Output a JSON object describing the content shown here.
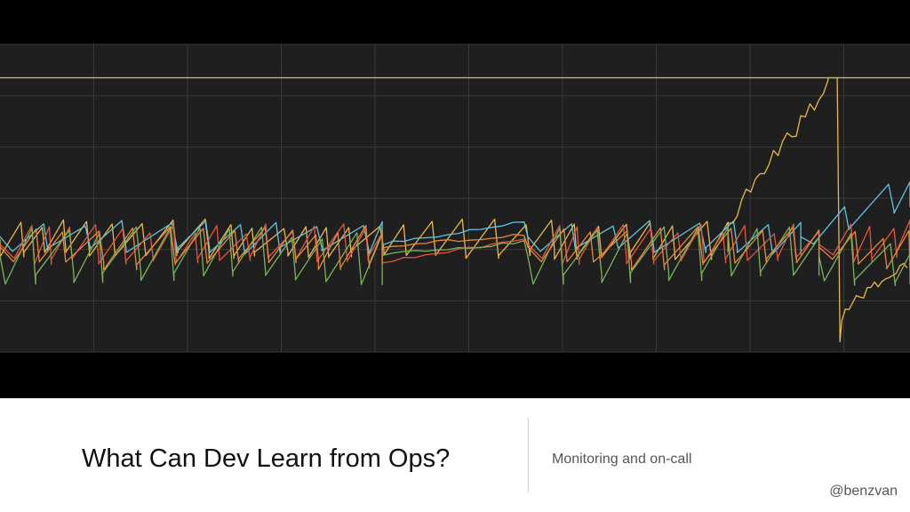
{
  "slide": {
    "title": "What Can Dev Learn from Ops?",
    "subtitle": "Monitoring and on-call",
    "handle": "@benzvan"
  },
  "colors": {
    "background": "#000000",
    "plot_background": "#1f1f1f",
    "grid": "#3a3a3a"
  },
  "chart_data": {
    "type": "line",
    "title": "",
    "xlabel": "",
    "ylabel": "",
    "grid": true,
    "legend": "none",
    "xlim": [
      0,
      100
    ],
    "ylim": [
      0,
      6
    ],
    "series": [
      {
        "color": "#e8b84a",
        "kind": "flat",
        "level": 5.35,
        "start": 0,
        "end": 100
      },
      {
        "color": "#e8b84a",
        "kind": "sawtooth",
        "period": 3.1,
        "low": 1.8,
        "high": 2.6,
        "phase": 0.0,
        "seed": 11,
        "start": 0,
        "end": 80,
        "ramp_end": 91,
        "ramp_to": 5.35,
        "hold_end": 92,
        "drop_to": 0.2,
        "recover_end": 100,
        "recover_to": 1.7
      },
      {
        "color": "#5ec4e0",
        "kind": "sawtooth",
        "period": 4.6,
        "low": 1.9,
        "high": 2.6,
        "phase": 0.3,
        "seed": 23,
        "start": 0,
        "end": 100,
        "calm_start": 42,
        "calm_end": 58,
        "calm_from": 2.1,
        "calm_to": 2.55,
        "climb_start": 88,
        "climb_to": 3.45
      },
      {
        "color": "#e4563a",
        "kind": "sawtooth",
        "period": 2.6,
        "low": 1.7,
        "high": 2.5,
        "phase": 0.6,
        "seed": 37,
        "start": 0,
        "end": 100,
        "calm_start": 42,
        "calm_end": 58,
        "calm_from": 1.75,
        "calm_to": 2.2,
        "climb_start": 90,
        "climb_to": 2.6
      },
      {
        "color": "#7bb35a",
        "kind": "sawtooth",
        "period": 3.9,
        "low": 1.3,
        "high": 2.45,
        "phase": 0.15,
        "seed": 53,
        "start": 0,
        "end": 100,
        "calm_start": 42,
        "calm_end": 58,
        "calm_from": 1.9,
        "calm_to": 2.15,
        "climb_start": 90,
        "climb_to": 2.2
      },
      {
        "color": "#e58a3c",
        "kind": "sawtooth",
        "period": 3.3,
        "low": 1.6,
        "high": 2.5,
        "phase": 0.45,
        "seed": 71,
        "start": 0,
        "end": 100,
        "calm_start": 42,
        "calm_end": 58,
        "calm_from": 2.05,
        "calm_to": 2.3,
        "climb_start": 90,
        "climb_to": 2.4
      }
    ]
  }
}
